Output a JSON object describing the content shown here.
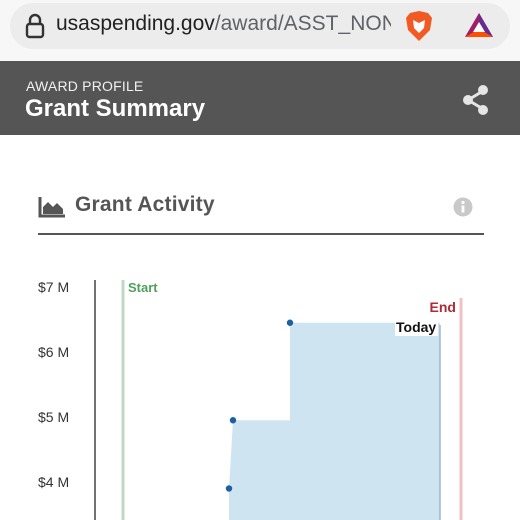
{
  "browser": {
    "url_domain": "usaspending.gov",
    "url_path": "/award/ASST_NON_"
  },
  "header": {
    "eyebrow": "AWARD PROFILE",
    "title": "Grant Summary"
  },
  "section": {
    "title": "Grant Activity"
  },
  "colors": {
    "header_bg": "#555555",
    "area_fill": "#cfe4f1",
    "point": "#1c5fa3",
    "start_line": "#bcd9c4",
    "end_line": "#f0c2c5"
  },
  "chart_data": {
    "type": "area",
    "y_tick_labels": [
      "$7 M",
      "$6 M",
      "$5 M",
      "$4 M"
    ],
    "y_values_millions": [
      7,
      6,
      5,
      4
    ],
    "ylim": [
      3.4,
      7.1
    ],
    "markers": {
      "start": "Start",
      "end": "End",
      "today": "Today"
    },
    "series": [
      {
        "values": [
          {
            "step": 1,
            "y": 3.9
          },
          {
            "step": 2,
            "y": 4.95
          },
          {
            "step": 3,
            "y": 6.45
          }
        ]
      }
    ]
  }
}
